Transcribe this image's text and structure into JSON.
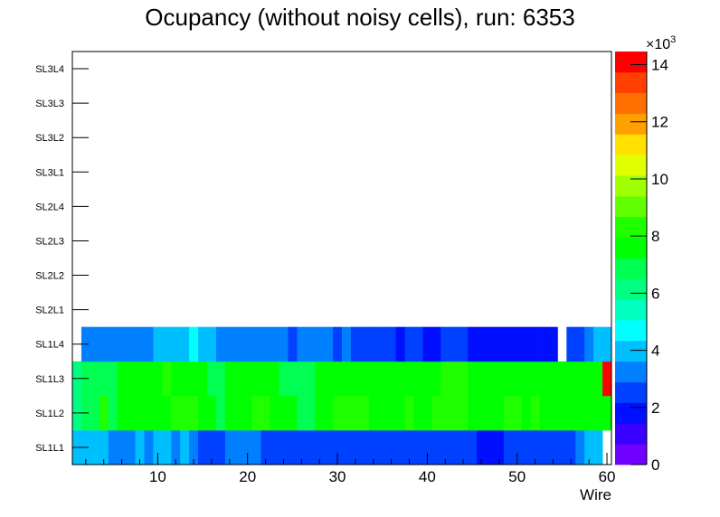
{
  "chart_data": {
    "type": "heatmap",
    "title": "Ocupancy (without noisy cells), run: 6353",
    "xlabel": "Wire",
    "ylabel": "",
    "xlim": [
      0.5,
      60.5
    ],
    "x_ticks": [
      "10",
      "20",
      "30",
      "40",
      "50",
      "60"
    ],
    "y_categories": [
      "SL1L1",
      "SL1L2",
      "SL1L3",
      "SL1L4",
      "SL2L1",
      "SL2L2",
      "SL2L3",
      "SL2L4",
      "SL3L1",
      "SL3L2",
      "SL3L3",
      "SL3L4"
    ],
    "z_unit_label": "×10",
    "z_unit_exponent": "3",
    "z_range_thousands": [
      0,
      14.46
    ],
    "z_ticks": [
      "0",
      "2",
      "4",
      "6",
      "8",
      "10",
      "12",
      "14"
    ],
    "palette": [
      "#7000ff",
      "#3800ff",
      "#0010ff",
      "#0040ff",
      "#0080ff",
      "#00bfff",
      "#00ffff",
      "#00ffc0",
      "#00ff80",
      "#00ff50",
      "#00ff00",
      "#20ff00",
      "#60ff00",
      "#a0ff00",
      "#e0ff00",
      "#ffe000",
      "#ffa000",
      "#ff7000",
      "#ff4000",
      "#ff0000"
    ],
    "values_thousands": {
      "SL1L1": [
        3.9,
        3.9,
        3.9,
        3.9,
        3.2,
        3.2,
        3.2,
        3.9,
        3.2,
        3.9,
        3.9,
        3.2,
        3.9,
        3.2,
        2.5,
        2.5,
        2.5,
        3.2,
        3.2,
        3.2,
        3.2,
        2.5,
        2.5,
        2.5,
        2.5,
        2.5,
        2.5,
        2.5,
        2.5,
        2.5,
        2.5,
        2.5,
        2.5,
        2.5,
        2.5,
        2.5,
        2.5,
        2.5,
        2.5,
        2.5,
        2.5,
        2.5,
        2.5,
        2.5,
        2.5,
        1.8,
        1.8,
        1.8,
        2.5,
        2.5,
        2.5,
        2.5,
        2.5,
        2.5,
        2.5,
        2.5,
        3.2,
        3.9,
        3.9,
        0
      ],
      "SL1L2": [
        6.1,
        6.8,
        6.8,
        8.3,
        6.8,
        7.6,
        7.6,
        7.6,
        7.6,
        7.6,
        7.6,
        8.3,
        8.3,
        8.3,
        7.6,
        7.6,
        6.8,
        7.6,
        7.6,
        7.6,
        8.3,
        8.3,
        7.6,
        7.6,
        7.6,
        6.8,
        6.8,
        7.6,
        7.6,
        8.3,
        8.3,
        8.3,
        8.3,
        7.6,
        7.6,
        7.6,
        7.6,
        8.3,
        7.6,
        7.6,
        8.3,
        8.3,
        8.3,
        8.3,
        7.6,
        7.6,
        7.6,
        7.6,
        8.3,
        8.3,
        7.6,
        8.3,
        7.6,
        7.6,
        7.6,
        7.6,
        7.6,
        7.6,
        7.6,
        7.6
      ],
      "SL1L3": [
        6.1,
        6.8,
        6.8,
        6.8,
        6.8,
        7.6,
        7.6,
        7.6,
        7.6,
        7.6,
        8.3,
        7.6,
        7.6,
        7.6,
        7.6,
        6.8,
        6.8,
        7.6,
        7.6,
        7.6,
        7.6,
        7.6,
        7.6,
        6.8,
        6.8,
        6.8,
        6.8,
        7.6,
        7.6,
        7.6,
        7.6,
        7.6,
        7.6,
        7.6,
        7.6,
        7.6,
        7.6,
        7.6,
        7.6,
        7.6,
        7.6,
        8.3,
        8.3,
        8.3,
        7.6,
        7.6,
        7.6,
        7.6,
        7.6,
        7.6,
        7.6,
        7.6,
        7.6,
        7.6,
        7.6,
        7.6,
        7.6,
        7.6,
        7.6,
        14.2
      ],
      "SL1L4": [
        0,
        3.2,
        3.2,
        3.2,
        3.2,
        3.2,
        3.2,
        3.2,
        3.2,
        3.9,
        3.9,
        3.9,
        3.9,
        4.7,
        3.9,
        3.9,
        3.2,
        3.2,
        3.2,
        3.2,
        3.2,
        3.2,
        3.2,
        3.2,
        2.5,
        3.2,
        3.2,
        3.2,
        3.2,
        2.5,
        3.2,
        2.5,
        2.5,
        2.5,
        2.5,
        2.5,
        1.8,
        2.5,
        2.5,
        1.8,
        1.8,
        2.5,
        2.5,
        2.5,
        1.8,
        1.8,
        1.8,
        1.8,
        1.8,
        1.8,
        1.8,
        1.8,
        1.8,
        1.8,
        0,
        2.5,
        2.5,
        3.2,
        3.9,
        3.9
      ]
    }
  }
}
